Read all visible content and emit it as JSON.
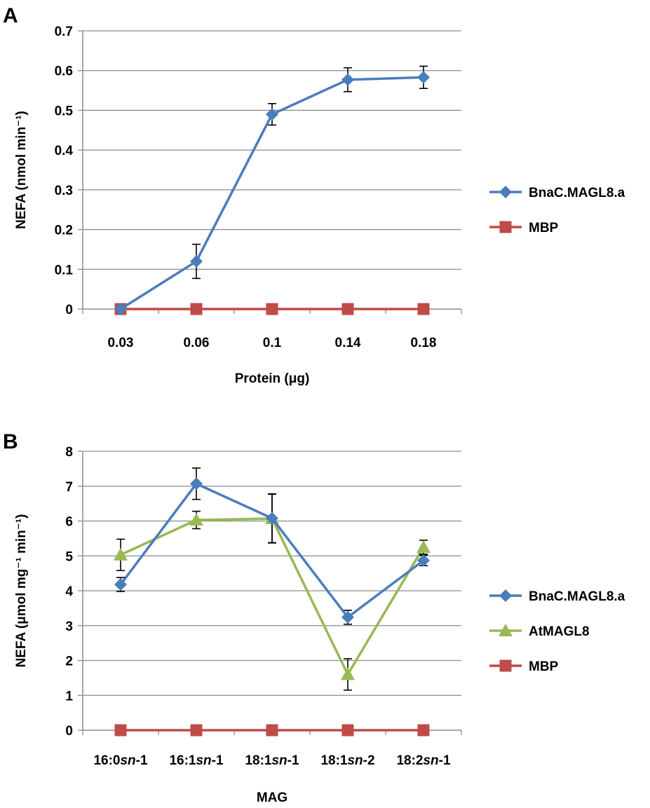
{
  "chart_data": [
    {
      "panel_label": "A",
      "type": "line",
      "xlabel": "Protein (μg)",
      "ylabel": "NEFA (nmol min⁻¹)",
      "ylim": [
        0,
        0.7
      ],
      "yticks": [
        "0",
        "0.1",
        "0.2",
        "0.3",
        "0.4",
        "0.5",
        "0.6",
        "0.7"
      ],
      "categories": [
        "0.03",
        "0.06",
        "0.1",
        "0.14",
        "0.18"
      ],
      "grid": true,
      "legend_position": "right",
      "series": [
        {
          "name": "BnaC.MAGL8.a",
          "color": "#4a7ebb",
          "marker": "diamond",
          "values": [
            0.0,
            0.12,
            0.49,
            0.577,
            0.583
          ],
          "errors": [
            0.0,
            0.043,
            0.027,
            0.03,
            0.028
          ]
        },
        {
          "name": "MBP",
          "color": "#be4b48",
          "marker": "square",
          "values": [
            0,
            0,
            0,
            0,
            0
          ],
          "errors": [
            0,
            0,
            0,
            0,
            0
          ]
        }
      ]
    },
    {
      "panel_label": "B",
      "type": "line",
      "xlabel": "MAG",
      "ylabel": "NEFA (μmol mg⁻¹ min⁻¹)",
      "ylim": [
        0,
        8
      ],
      "yticks": [
        "0",
        "1",
        "2",
        "3",
        "4",
        "5",
        "6",
        "7",
        "8"
      ],
      "categories": [
        "16:0 sn-1",
        "16:1 sn-1",
        "18:1 sn-1",
        "18:1 sn-2",
        "18:2 sn-1"
      ],
      "grid": true,
      "legend_position": "right",
      "series": [
        {
          "name": "BnaC.MAGL8.a",
          "color": "#4a7ebb",
          "marker": "diamond",
          "values": [
            4.18,
            7.07,
            6.08,
            3.24,
            4.87
          ],
          "errors": [
            0.2,
            0.45,
            0.7,
            0.2,
            0.15
          ]
        },
        {
          "name": "AtMAGL8",
          "color": "#98b954",
          "marker": "triangle",
          "values": [
            5.03,
            6.03,
            6.07,
            1.6,
            5.25
          ],
          "errors": [
            0.45,
            0.25,
            0.7,
            0.45,
            0.2
          ]
        },
        {
          "name": "MBP",
          "color": "#be4b48",
          "marker": "square",
          "values": [
            0,
            0,
            0,
            0,
            0
          ],
          "errors": [
            0,
            0,
            0,
            0,
            0
          ]
        }
      ]
    }
  ]
}
